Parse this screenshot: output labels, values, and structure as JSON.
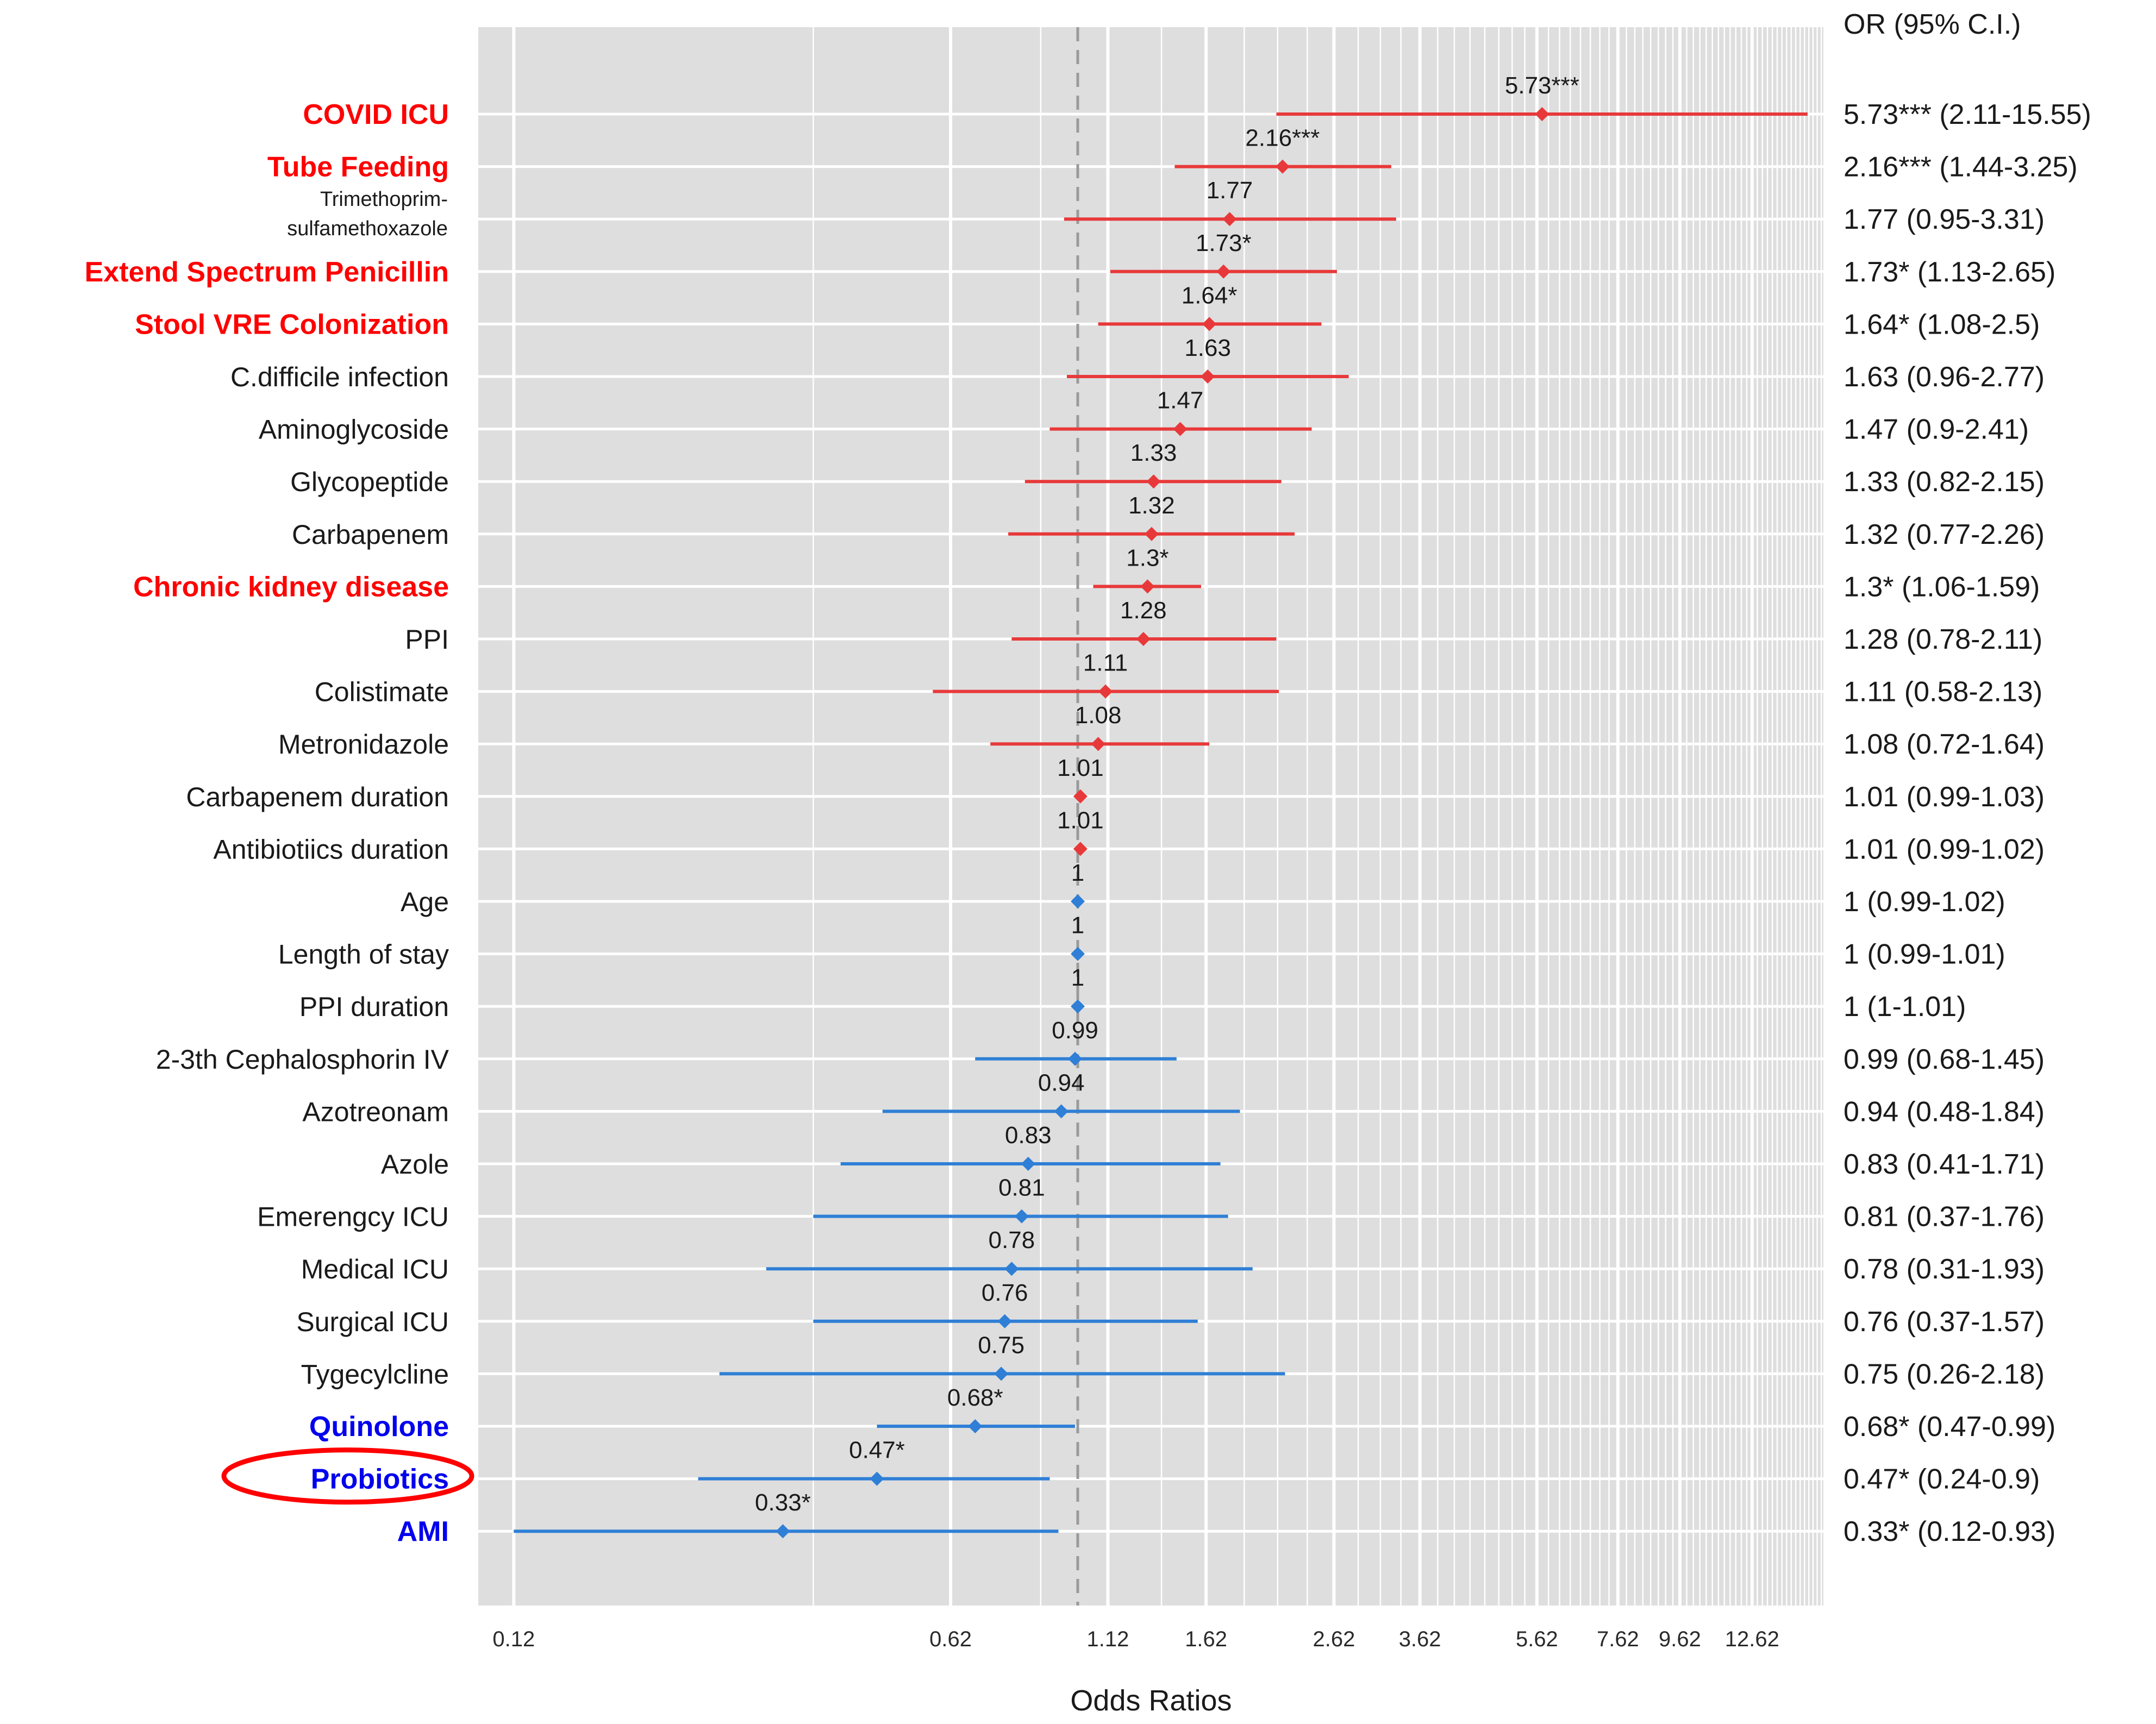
{
  "chart_data": {
    "type": "forest",
    "xlabel": "Odds Ratios",
    "x_scale": "log",
    "xlim": [
      0.105,
      16.5
    ],
    "reference_line": 1.0,
    "or_column_header": "OR (95% C.I.)",
    "x_ticks": [
      "0.12",
      "0.62",
      "1.12",
      "1.62",
      "2.62",
      "3.62",
      "5.62",
      "7.62",
      "9.62",
      "12.62"
    ],
    "colors": {
      "risk": "#e8393a",
      "protective": "#2f7fd6",
      "panel": "#dedede",
      "sig_risk_label": "#ff0000",
      "sig_protective_label": "#0000ee",
      "highlight_ellipse": "#ff0000"
    },
    "rows": [
      {
        "label": "COVID ICU",
        "or": 5.73,
        "lo": 2.11,
        "hi": 15.55,
        "value_label": "5.73***",
        "or_text": "5.73*** (2.11-15.55)",
        "group": "risk",
        "label_style": "sig-red"
      },
      {
        "label": "Tube Feeding",
        "or": 2.16,
        "lo": 1.44,
        "hi": 3.25,
        "value_label": "2.16***",
        "or_text": "2.16*** (1.44-3.25)",
        "group": "risk",
        "label_style": "sig-red"
      },
      {
        "label": "Trimethoprim-",
        "label2": "sulfamethoxazole",
        "or": 1.77,
        "lo": 0.95,
        "hi": 3.31,
        "value_label": "1.77",
        "or_text": "1.77 (0.95-3.31)",
        "group": "risk",
        "label_style": "small"
      },
      {
        "label": "Extend Spectrum Penicillin",
        "or": 1.73,
        "lo": 1.13,
        "hi": 2.65,
        "value_label": "1.73*",
        "or_text": "1.73* (1.13-2.65)",
        "group": "risk",
        "label_style": "sig-red"
      },
      {
        "label": "Stool VRE Colonization",
        "or": 1.64,
        "lo": 1.08,
        "hi": 2.5,
        "value_label": "1.64*",
        "or_text": "1.64* (1.08-2.5)",
        "group": "risk",
        "label_style": "sig-red"
      },
      {
        "label": "C.difficile infection",
        "or": 1.63,
        "lo": 0.96,
        "hi": 2.77,
        "value_label": "1.63",
        "or_text": "1.63 (0.96-2.77)",
        "group": "risk",
        "label_style": "plain"
      },
      {
        "label": "Aminoglycoside",
        "or": 1.47,
        "lo": 0.9,
        "hi": 2.41,
        "value_label": "1.47",
        "or_text": "1.47 (0.9-2.41)",
        "group": "risk",
        "label_style": "plain"
      },
      {
        "label": "Glycopeptide",
        "or": 1.33,
        "lo": 0.82,
        "hi": 2.15,
        "value_label": "1.33",
        "or_text": "1.33 (0.82-2.15)",
        "group": "risk",
        "label_style": "plain"
      },
      {
        "label": "Carbapenem",
        "or": 1.32,
        "lo": 0.77,
        "hi": 2.26,
        "value_label": "1.32",
        "or_text": "1.32 (0.77-2.26)",
        "group": "risk",
        "label_style": "plain"
      },
      {
        "label": "Chronic kidney disease",
        "or": 1.3,
        "lo": 1.06,
        "hi": 1.59,
        "value_label": "1.3*",
        "or_text": "1.3* (1.06-1.59)",
        "group": "risk",
        "label_style": "sig-red"
      },
      {
        "label": "PPI",
        "or": 1.28,
        "lo": 0.78,
        "hi": 2.11,
        "value_label": "1.28",
        "or_text": "1.28 (0.78-2.11)",
        "group": "risk",
        "label_style": "plain"
      },
      {
        "label": "Colistimate",
        "or": 1.11,
        "lo": 0.58,
        "hi": 2.13,
        "value_label": "1.11",
        "or_text": "1.11 (0.58-2.13)",
        "group": "risk",
        "label_style": "plain"
      },
      {
        "label": "Metronidazole",
        "or": 1.08,
        "lo": 0.72,
        "hi": 1.64,
        "value_label": "1.08",
        "or_text": "1.08 (0.72-1.64)",
        "group": "risk",
        "label_style": "plain"
      },
      {
        "label": "Carbapenem duration",
        "or": 1.01,
        "lo": 0.99,
        "hi": 1.03,
        "value_label": "1.01",
        "or_text": "1.01 (0.99-1.03)",
        "group": "risk",
        "label_style": "plain"
      },
      {
        "label": "Antibiotiics duration",
        "or": 1.01,
        "lo": 0.99,
        "hi": 1.02,
        "value_label": "1.01",
        "or_text": "1.01 (0.99-1.02)",
        "group": "risk",
        "label_style": "plain"
      },
      {
        "label": "Age",
        "or": 1.0,
        "lo": 0.99,
        "hi": 1.02,
        "value_label": "1",
        "or_text": "1 (0.99-1.02)",
        "group": "protective",
        "label_style": "plain"
      },
      {
        "label": "Length of stay",
        "or": 1.0,
        "lo": 0.99,
        "hi": 1.01,
        "value_label": "1",
        "or_text": "1 (0.99-1.01)",
        "group": "protective",
        "label_style": "plain"
      },
      {
        "label": "PPI duration",
        "or": 1.0,
        "lo": 1.0,
        "hi": 1.01,
        "value_label": "1",
        "or_text": "1 (1-1.01)",
        "group": "protective",
        "label_style": "plain"
      },
      {
        "label": "2-3th Cephalosphorin IV",
        "or": 0.99,
        "lo": 0.68,
        "hi": 1.45,
        "value_label": "0.99",
        "or_text": "0.99 (0.68-1.45)",
        "group": "protective",
        "label_style": "plain"
      },
      {
        "label": "Azotreonam",
        "or": 0.94,
        "lo": 0.48,
        "hi": 1.84,
        "value_label": "0.94",
        "or_text": "0.94 (0.48-1.84)",
        "group": "protective",
        "label_style": "plain"
      },
      {
        "label": "Azole",
        "or": 0.83,
        "lo": 0.41,
        "hi": 1.71,
        "value_label": "0.83",
        "or_text": "0.83 (0.41-1.71)",
        "group": "protective",
        "label_style": "plain"
      },
      {
        "label": "Emerengcy ICU",
        "or": 0.81,
        "lo": 0.37,
        "hi": 1.76,
        "value_label": "0.81",
        "or_text": "0.81 (0.37-1.76)",
        "group": "protective",
        "label_style": "plain"
      },
      {
        "label": "Medical ICU",
        "or": 0.78,
        "lo": 0.31,
        "hi": 1.93,
        "value_label": "0.78",
        "or_text": "0.78 (0.31-1.93)",
        "group": "protective",
        "label_style": "plain"
      },
      {
        "label": "Surgical ICU",
        "or": 0.76,
        "lo": 0.37,
        "hi": 1.57,
        "value_label": "0.76",
        "or_text": "0.76 (0.37-1.57)",
        "group": "protective",
        "label_style": "plain"
      },
      {
        "label": "Tygecylcline",
        "or": 0.75,
        "lo": 0.26,
        "hi": 2.18,
        "value_label": "0.75",
        "or_text": "0.75 (0.26-2.18)",
        "group": "protective",
        "label_style": "plain"
      },
      {
        "label": "Quinolone",
        "or": 0.68,
        "lo": 0.47,
        "hi": 0.99,
        "value_label": "0.68*",
        "or_text": "0.68* (0.47-0.99)",
        "group": "protective",
        "label_style": "sig-blue"
      },
      {
        "label": "Probiotics",
        "or": 0.47,
        "lo": 0.24,
        "hi": 0.9,
        "value_label": "0.47*",
        "or_text": "0.47* (0.24-0.9)",
        "group": "protective",
        "label_style": "sig-blue",
        "highlighted": true
      },
      {
        "label": "AMI",
        "or": 0.33,
        "lo": 0.12,
        "hi": 0.93,
        "value_label": "0.33*",
        "or_text": "0.33* (0.12-0.93)",
        "group": "protective",
        "label_style": "sig-blue"
      }
    ]
  }
}
